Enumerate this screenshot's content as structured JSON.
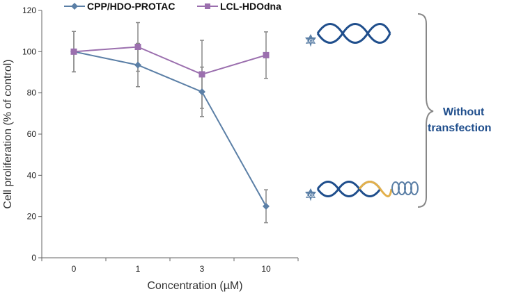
{
  "chart_data": {
    "type": "line",
    "title": "",
    "xlabel": "Concentration (µM)",
    "ylabel": "Cell proliferation (% of control)",
    "categories": [
      "0",
      "1",
      "3",
      "10"
    ],
    "ylim": [
      0,
      120
    ],
    "yticks": [
      0,
      20,
      40,
      60,
      80,
      100,
      120
    ],
    "grid": false,
    "legend_position": "top",
    "series": [
      {
        "name": "CPP/HDO-PROTAC",
        "marker": "diamond",
        "color": "#5b7fa6",
        "values": [
          100,
          93.5,
          80.5,
          25
        ],
        "errors": [
          9.8,
          10.5,
          12,
          8
        ]
      },
      {
        "name": "LCL-HDOdna",
        "marker": "square",
        "color": "#9b6fae",
        "values": [
          100,
          102.3,
          89,
          98.3
        ],
        "errors": [
          9.8,
          11.8,
          16.5,
          11.3
        ]
      }
    ]
  },
  "annotation": {
    "line1": "Without",
    "line2": "transfection",
    "color": "#1f4e8c"
  },
  "molecule_badge": "LCL",
  "colors": {
    "dna_dark": "#1f4e8c",
    "dna_gold": "#e3b04b",
    "dna_coil": "#5b7fa6",
    "badge": "#5b7fa6",
    "brace": "#888888",
    "error_bar": "#888888",
    "axis": "#666666"
  }
}
